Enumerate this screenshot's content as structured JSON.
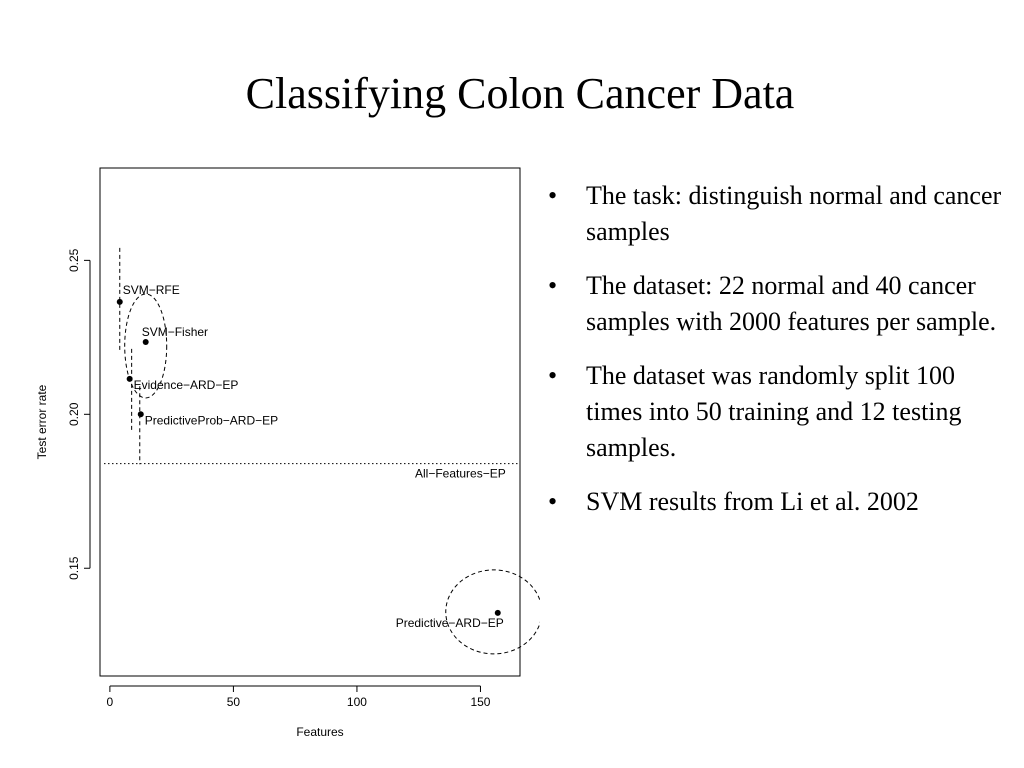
{
  "slide": {
    "title": "Classifying Colon Cancer Data",
    "bullet_glyph": "•",
    "bullets": [
      "The task: distinguish  normal and cancer samples",
      "The dataset: 22 normal and 40 cancer samples with 2000 features per sample.",
      "The dataset was randomly split 100 times into 50 training and 12 testing samples.",
      "SVM results from Li et al. 2002"
    ]
  },
  "chart_data": {
    "type": "scatter",
    "xlabel": "Features",
    "ylabel": "Test error rate",
    "xlim": [
      -4,
      166
    ],
    "ylim": [
      0.115,
      0.28
    ],
    "x_ticks": [
      0,
      50,
      100,
      150
    ],
    "y_ticks": [
      0.15,
      0.2,
      0.25
    ],
    "x_tick_labels": [
      "0",
      "50",
      "100",
      "150"
    ],
    "y_tick_labels": [
      "0.15",
      "0.20",
      "0.25"
    ],
    "grid": false,
    "points": [
      {
        "label": "SVM−RFE",
        "x": 4,
        "y": 0.2365,
        "label_pos": "right-up"
      },
      {
        "label": "SVM−Fisher",
        "x": 14.5,
        "y": 0.2235,
        "label_pos": "above"
      },
      {
        "label": "Evidence−ARD−EP",
        "x": 8,
        "y": 0.2115,
        "label_pos": "right-down"
      },
      {
        "label": "PredictiveProb−ARD−EP",
        "x": 12.5,
        "y": 0.2,
        "label_pos": "right-down"
      },
      {
        "label": "Predictive−ARD−EP",
        "x": 157,
        "y": 0.1355,
        "label_pos": "left-down"
      }
    ],
    "reference_line": {
      "label": "All−Features−EP",
      "y": 0.184,
      "style": "dotted"
    }
  }
}
